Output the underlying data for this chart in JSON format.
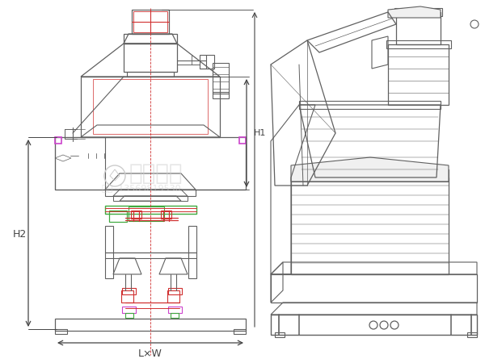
{
  "bg_color": "#ffffff",
  "lc": "#606060",
  "rc": "#d03030",
  "gc": "#40aa40",
  "mc": "#cc44cc",
  "dc": "#444444",
  "wc": "#cccccc",
  "label_H2": "H2",
  "label_LxW": "L×W",
  "label_H1": "H1",
  "fig_width": 6.0,
  "fig_height": 4.5,
  "dpi": 100
}
